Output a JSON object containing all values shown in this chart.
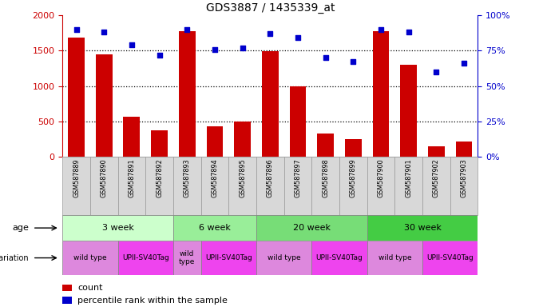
{
  "title": "GDS3887 / 1435339_at",
  "samples": [
    "GSM587889",
    "GSM587890",
    "GSM587891",
    "GSM587892",
    "GSM587893",
    "GSM587894",
    "GSM587895",
    "GSM587896",
    "GSM587897",
    "GSM587898",
    "GSM587899",
    "GSM587900",
    "GSM587901",
    "GSM587902",
    "GSM587903"
  ],
  "counts": [
    1680,
    1450,
    560,
    370,
    1780,
    430,
    500,
    1490,
    990,
    330,
    250,
    1780,
    1300,
    140,
    210
  ],
  "percentiles": [
    90,
    88,
    79,
    72,
    90,
    76,
    77,
    87,
    84,
    70,
    67,
    90,
    88,
    60,
    66
  ],
  "bar_color": "#cc0000",
  "dot_color": "#0000cc",
  "ylim_left": [
    0,
    2000
  ],
  "ylim_right": [
    0,
    100
  ],
  "yticks_left": [
    0,
    500,
    1000,
    1500,
    2000
  ],
  "ytick_labels_left": [
    "0",
    "500",
    "1000",
    "1500",
    "2000"
  ],
  "yticks_right": [
    0,
    25,
    50,
    75,
    100
  ],
  "ytick_labels_right": [
    "0%",
    "25%",
    "50%",
    "75%",
    "100%"
  ],
  "age_groups": [
    {
      "label": "3 week",
      "start": 0,
      "end": 4,
      "color": "#ccffcc"
    },
    {
      "label": "6 week",
      "start": 4,
      "end": 7,
      "color": "#99ee99"
    },
    {
      "label": "20 week",
      "start": 7,
      "end": 11,
      "color": "#77dd77"
    },
    {
      "label": "30 week",
      "start": 11,
      "end": 15,
      "color": "#44cc44"
    }
  ],
  "genotype_groups": [
    {
      "label": "wild type",
      "start": 0,
      "end": 2,
      "color": "#dd88dd"
    },
    {
      "label": "UPII-SV40Tag",
      "start": 2,
      "end": 4,
      "color": "#ee44ee"
    },
    {
      "label": "wild\ntype",
      "start": 4,
      "end": 5,
      "color": "#dd88dd"
    },
    {
      "label": "UPII-SV40Tag",
      "start": 5,
      "end": 7,
      "color": "#ee44ee"
    },
    {
      "label": "wild type",
      "start": 7,
      "end": 9,
      "color": "#dd88dd"
    },
    {
      "label": "UPII-SV40Tag",
      "start": 9,
      "end": 11,
      "color": "#ee44ee"
    },
    {
      "label": "wild type",
      "start": 11,
      "end": 13,
      "color": "#dd88dd"
    },
    {
      "label": "UPII-SV40Tag",
      "start": 13,
      "end": 15,
      "color": "#ee44ee"
    }
  ],
  "legend_count_color": "#cc0000",
  "legend_percentile_color": "#0000cc",
  "grid_color": "black",
  "sample_bg_color": "#d8d8d8",
  "sample_border_color": "#999999"
}
